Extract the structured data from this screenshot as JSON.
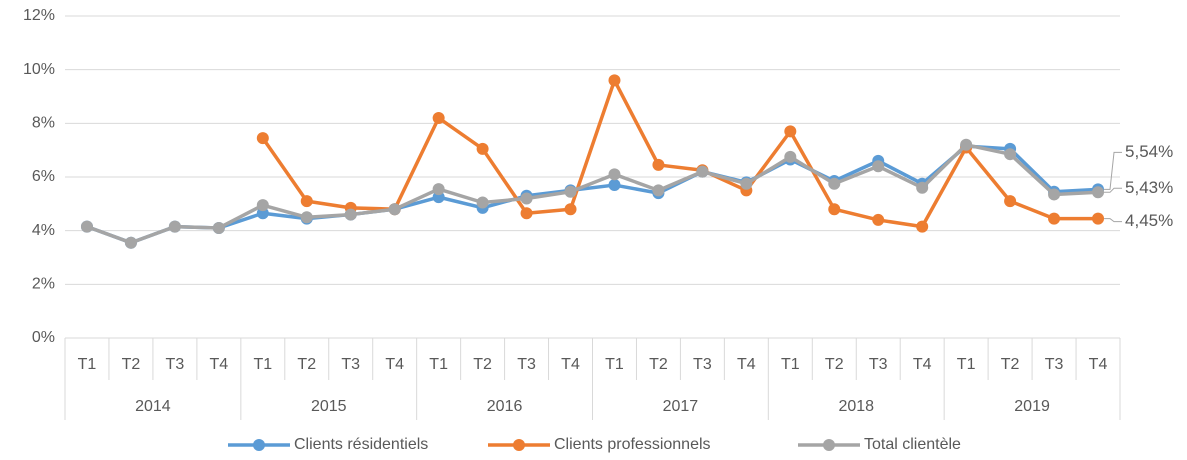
{
  "chart_data": {
    "type": "line",
    "categories": [
      "T1",
      "T2",
      "T3",
      "T4",
      "T1",
      "T2",
      "T3",
      "T4",
      "T1",
      "T2",
      "T3",
      "T4",
      "T1",
      "T2",
      "T3",
      "T4",
      "T1",
      "T2",
      "T3",
      "T4",
      "T1",
      "T2",
      "T3",
      "T4"
    ],
    "category_groups": [
      "2014",
      "2015",
      "2016",
      "2017",
      "2018",
      "2019"
    ],
    "ylim": [
      0,
      12
    ],
    "yticks": [
      {
        "value": 0,
        "label": "0%"
      },
      {
        "value": 2,
        "label": "2%"
      },
      {
        "value": 4,
        "label": "4%"
      },
      {
        "value": 6,
        "label": "6%"
      },
      {
        "value": 8,
        "label": "8%"
      },
      {
        "value": 10,
        "label": "10%"
      },
      {
        "value": 12,
        "label": "12%"
      }
    ],
    "grid": true,
    "legend": "bottom",
    "series": [
      {
        "name": "Clients résidentiels",
        "color": "#5b9bd5",
        "values": [
          4.15,
          3.55,
          4.15,
          4.1,
          4.65,
          4.45,
          4.6,
          4.8,
          5.25,
          4.85,
          5.3,
          5.5,
          5.7,
          5.4,
          6.2,
          5.8,
          6.65,
          5.85,
          6.6,
          5.75,
          7.15,
          7.05,
          5.45,
          5.54
        ],
        "value_labels": [
          null,
          null,
          null,
          null,
          null,
          null,
          null,
          null,
          null,
          null,
          null,
          null,
          null,
          null,
          null,
          null,
          null,
          null,
          null,
          null,
          null,
          null,
          null,
          "5,54%"
        ]
      },
      {
        "name": "Clients professionnels",
        "color": "#ed7d31",
        "values": [
          null,
          null,
          null,
          null,
          7.45,
          5.1,
          4.85,
          4.8,
          8.2,
          7.05,
          4.65,
          4.8,
          9.6,
          6.45,
          6.25,
          5.5,
          7.7,
          4.8,
          4.4,
          4.15,
          7.1,
          5.1,
          4.45,
          4.45
        ],
        "value_labels": [
          null,
          null,
          null,
          null,
          null,
          null,
          null,
          null,
          null,
          null,
          null,
          null,
          null,
          null,
          null,
          null,
          null,
          null,
          null,
          null,
          null,
          null,
          null,
          "4,45%"
        ]
      },
      {
        "name": "Total clientèle",
        "color": "#a5a5a5",
        "values": [
          4.15,
          3.55,
          4.15,
          4.1,
          4.95,
          4.5,
          4.6,
          4.8,
          5.55,
          5.05,
          5.2,
          5.45,
          6.1,
          5.5,
          6.2,
          5.75,
          6.75,
          5.75,
          6.4,
          5.6,
          7.2,
          6.85,
          5.35,
          5.43
        ],
        "value_labels": [
          null,
          null,
          null,
          null,
          null,
          null,
          null,
          null,
          null,
          null,
          null,
          null,
          null,
          null,
          null,
          null,
          null,
          null,
          null,
          null,
          null,
          null,
          null,
          "5,43%"
        ]
      }
    ]
  }
}
